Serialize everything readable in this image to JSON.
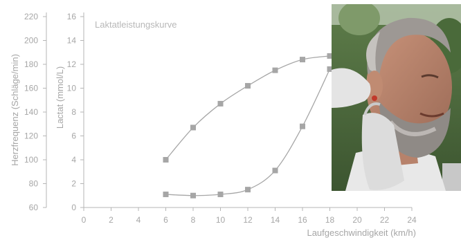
{
  "chart_data": {
    "type": "line",
    "title": "Laktatleistungskurve",
    "xlabel": "Laufgeschwindigkeit (km/h)",
    "ylabel_left": "Herzfrequenz (Schläge/min)",
    "ylabel_right": "Lactat (mmol/L)",
    "x_ticks": [
      "0",
      "2",
      "4",
      "6",
      "8",
      "10",
      "12",
      "14",
      "16",
      "18",
      "20",
      "22",
      "24"
    ],
    "hr_ticks": [
      "60",
      "80",
      "100",
      "120",
      "140",
      "160",
      "180",
      "200",
      "220"
    ],
    "lactate_ticks": [
      "0",
      "2",
      "4",
      "6",
      "8",
      "10",
      "12",
      "14",
      "16"
    ],
    "xlim": [
      0,
      24
    ],
    "hr_ylim": [
      60,
      220
    ],
    "lactate_ylim": [
      0,
      16
    ],
    "grid": false,
    "marker_color": "#a6a6a6",
    "line_color": "#a6a6a6",
    "series": [
      {
        "axis": "lactate",
        "x": [
          6,
          8,
          10,
          12,
          14,
          16,
          18
        ],
        "y": [
          1.1,
          1.0,
          1.1,
          1.5,
          3.1,
          6.8,
          11.6
        ]
      },
      {
        "axis": "heart_rate",
        "x": [
          6,
          8,
          10,
          12,
          14,
          16,
          18
        ],
        "y": [
          100,
          127,
          147,
          162,
          175,
          184,
          187
        ]
      }
    ]
  },
  "photo": {
    "subject": "man-ear-lactate-sample"
  }
}
